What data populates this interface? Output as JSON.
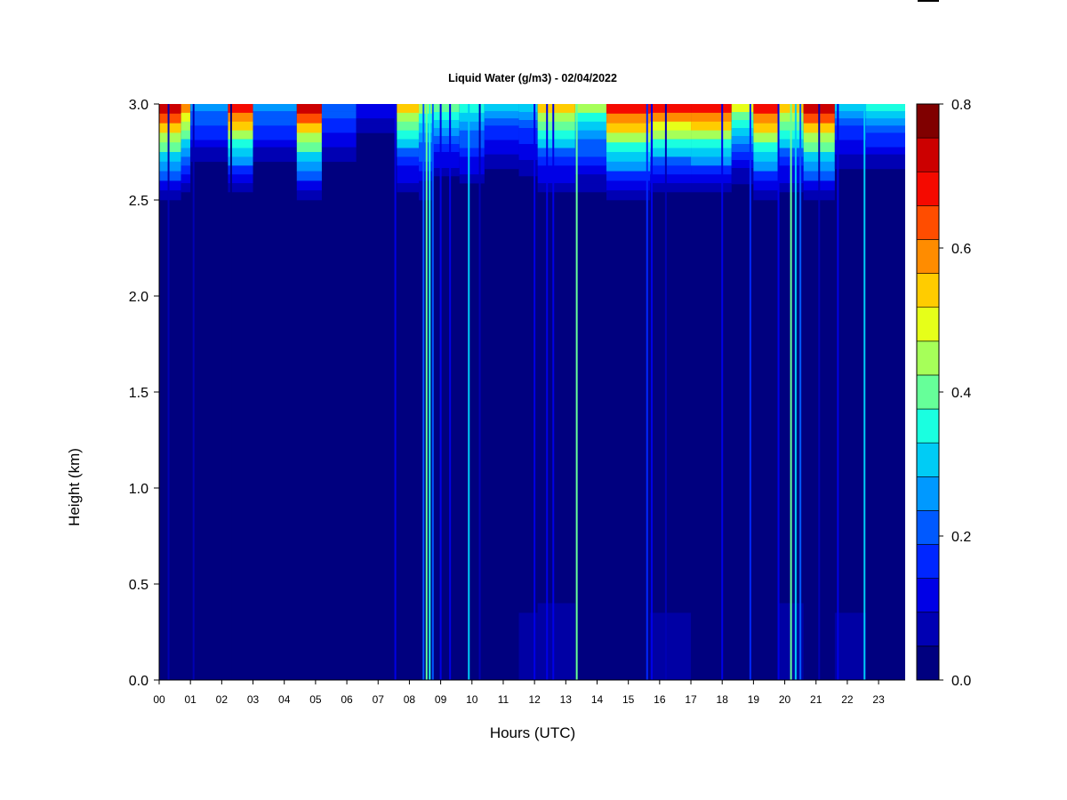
{
  "chart_data": {
    "type": "heatmap",
    "title": "Liquid Water (g/m3) - 02/04/2022",
    "xlabel": "Hours (UTC)",
    "ylabel": "Height (km)",
    "x_ticks": [
      "00",
      "01",
      "02",
      "03",
      "04",
      "05",
      "06",
      "07",
      "08",
      "09",
      "10",
      "11",
      "12",
      "13",
      "14",
      "15",
      "16",
      "17",
      "18",
      "19",
      "20",
      "21",
      "22",
      "23"
    ],
    "y_ticks": [
      "0.0",
      "0.5",
      "1.0",
      "1.5",
      "2.0",
      "2.5",
      "3.0"
    ],
    "xlim": [
      0,
      23.85
    ],
    "ylim": [
      0.0,
      3.0
    ],
    "colorbar": {
      "ticks": [
        "0.0",
        "0.2",
        "0.4",
        "0.6",
        "0.8"
      ],
      "range": [
        0.0,
        0.8
      ],
      "colors": [
        "#00007f",
        "#0000b3",
        "#0000e6",
        "#0026ff",
        "#0059ff",
        "#0099ff",
        "#00ccf5",
        "#1affe0",
        "#66ff99",
        "#a6ff59",
        "#e6ff19",
        "#ffcc00",
        "#ff8c00",
        "#ff4d00",
        "#f50a00",
        "#cc0000",
        "#800000"
      ]
    },
    "columns": [
      {
        "hours": [
          0.0,
          0.7
        ],
        "top_value": 0.75,
        "depth_km": 0.6,
        "haze_km": 0
      },
      {
        "hours": [
          0.7,
          1.0
        ],
        "top_value": 0.62,
        "depth_km": 0.55,
        "haze_km": 0
      },
      {
        "hours": [
          1.0,
          2.2
        ],
        "top_value": 0.28,
        "depth_km": 0.45,
        "haze_km": 0
      },
      {
        "hours": [
          2.2,
          3.0
        ],
        "top_value": 0.72,
        "depth_km": 0.55,
        "haze_km": 0
      },
      {
        "hours": [
          3.0,
          4.4
        ],
        "top_value": 0.28,
        "depth_km": 0.45,
        "haze_km": 0
      },
      {
        "hours": [
          4.4,
          5.2
        ],
        "top_value": 0.75,
        "depth_km": 0.6,
        "haze_km": 0
      },
      {
        "hours": [
          5.2,
          6.3
        ],
        "top_value": 0.24,
        "depth_km": 0.45,
        "haze_km": 0
      },
      {
        "hours": [
          6.3,
          7.6
        ],
        "top_value": 0.14,
        "depth_km": 0.3,
        "haze_km": 0
      },
      {
        "hours": [
          7.6,
          8.3
        ],
        "top_value": 0.55,
        "depth_km": 0.55,
        "haze_km": 0
      },
      {
        "hours": [
          8.3,
          8.75
        ],
        "top_value": 0.45,
        "depth_km": 0.6,
        "haze_km": 0
      },
      {
        "hours": [
          8.75,
          9.6
        ],
        "top_value": 0.42,
        "depth_km": 0.5,
        "haze_km": 0
      },
      {
        "hours": [
          9.6,
          10.4
        ],
        "top_value": 0.38,
        "depth_km": 0.55,
        "haze_km": 0
      },
      {
        "hours": [
          10.4,
          11.5
        ],
        "top_value": 0.3,
        "depth_km": 0.45,
        "haze_km": 0
      },
      {
        "hours": [
          11.5,
          12.1
        ],
        "top_value": 0.3,
        "depth_km": 0.5,
        "haze_km": 0.35
      },
      {
        "hours": [
          12.1,
          13.3
        ],
        "top_value": 0.55,
        "depth_km": 0.55,
        "haze_km": 0.4
      },
      {
        "hours": [
          13.3,
          14.3
        ],
        "top_value": 0.45,
        "depth_km": 0.55,
        "haze_km": 0
      },
      {
        "hours": [
          14.3,
          15.7
        ],
        "top_value": 0.72,
        "depth_km": 0.6,
        "haze_km": 0
      },
      {
        "hours": [
          15.7,
          17.0
        ],
        "top_value": 0.7,
        "depth_km": 0.55,
        "haze_km": 0.35
      },
      {
        "hours": [
          17.0,
          18.3
        ],
        "top_value": 0.72,
        "depth_km": 0.55,
        "haze_km": 0
      },
      {
        "hours": [
          18.3,
          19.0
        ],
        "top_value": 0.5,
        "depth_km": 0.5,
        "haze_km": 0
      },
      {
        "hours": [
          19.0,
          19.8
        ],
        "top_value": 0.72,
        "depth_km": 0.6,
        "haze_km": 0
      },
      {
        "hours": [
          19.8,
          20.6
        ],
        "top_value": 0.55,
        "depth_km": 0.55,
        "haze_km": 0.4
      },
      {
        "hours": [
          20.6,
          21.6
        ],
        "top_value": 0.75,
        "depth_km": 0.6,
        "haze_km": 0
      },
      {
        "hours": [
          21.6,
          22.6
        ],
        "top_value": 0.3,
        "depth_km": 0.45,
        "haze_km": 0.35
      },
      {
        "hours": [
          22.6,
          23.85
        ],
        "top_value": 0.35,
        "depth_km": 0.45,
        "haze_km": 0
      }
    ],
    "streaks": [
      {
        "hour": 0.3,
        "value": 0.06
      },
      {
        "hour": 1.1,
        "value": 0.05
      },
      {
        "hour": 2.3,
        "value": 0.04
      },
      {
        "hour": 7.55,
        "value": 0.14
      },
      {
        "hour": 8.45,
        "value": 0.2
      },
      {
        "hour": 8.55,
        "value": 0.42
      },
      {
        "hour": 8.65,
        "value": 0.35
      },
      {
        "hour": 8.75,
        "value": 0.22
      },
      {
        "hour": 9.0,
        "value": 0.12
      },
      {
        "hour": 9.3,
        "value": 0.1
      },
      {
        "hour": 9.9,
        "value": 0.3
      },
      {
        "hour": 10.25,
        "value": 0.08
      },
      {
        "hour": 12.0,
        "value": 0.1
      },
      {
        "hour": 12.4,
        "value": 0.12
      },
      {
        "hour": 12.6,
        "value": 0.1
      },
      {
        "hour": 13.35,
        "value": 0.38
      },
      {
        "hour": 15.6,
        "value": 0.16
      },
      {
        "hour": 15.75,
        "value": 0.12
      },
      {
        "hour": 16.2,
        "value": 0.09
      },
      {
        "hour": 18.0,
        "value": 0.1
      },
      {
        "hour": 18.9,
        "value": 0.18
      },
      {
        "hour": 19.8,
        "value": 0.14
      },
      {
        "hour": 20.2,
        "value": 0.4
      },
      {
        "hour": 20.35,
        "value": 0.32
      },
      {
        "hour": 20.5,
        "value": 0.22
      },
      {
        "hour": 21.1,
        "value": 0.08
      },
      {
        "hour": 21.7,
        "value": 0.1
      },
      {
        "hour": 22.55,
        "value": 0.3
      }
    ]
  }
}
